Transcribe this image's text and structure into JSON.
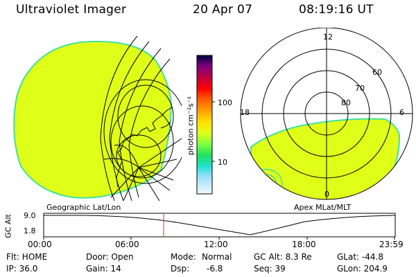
{
  "header": {
    "instrument": "Ultraviolet Imager",
    "date": "20 Apr 07",
    "time": "08:19:16 UT"
  },
  "colorbar": {
    "unit_label": "photon cm⁻²s⁻¹",
    "ticks": [
      "100",
      "10"
    ]
  },
  "polar": {
    "lat_labels": [
      "60",
      "70",
      "80"
    ],
    "mlt_labels": {
      "top": "12",
      "left": "18",
      "right": "6",
      "bottom": "0"
    }
  },
  "panels": {
    "left_caption": "Geographic Lat/Lon",
    "right_caption": "Apex MLat/MLT"
  },
  "altitude_plot": {
    "ylabel": "GC Alt",
    "yticks": [
      "9.0",
      "1.8"
    ],
    "xticks": [
      "00:00",
      "06:00",
      "12:00",
      "18:00",
      "23:59"
    ]
  },
  "info": {
    "col1": [
      "Flt: HOME",
      "IP: 36.0"
    ],
    "col2": [
      "Door: Open",
      "Gain: 14"
    ],
    "col3a": [
      "Mode:",
      "Dsp:"
    ],
    "col3b": [
      "Normal",
      "-6.8"
    ],
    "col4": [
      "GC Alt: 8.3 Re",
      "Seq: 39"
    ],
    "col5": [
      "GLat: -44.8",
      "GLon: 204.9"
    ]
  },
  "colors": {
    "image_fill": "#e0ff18",
    "image_edge": "#40e0a0",
    "marker": "#ff2020"
  }
}
